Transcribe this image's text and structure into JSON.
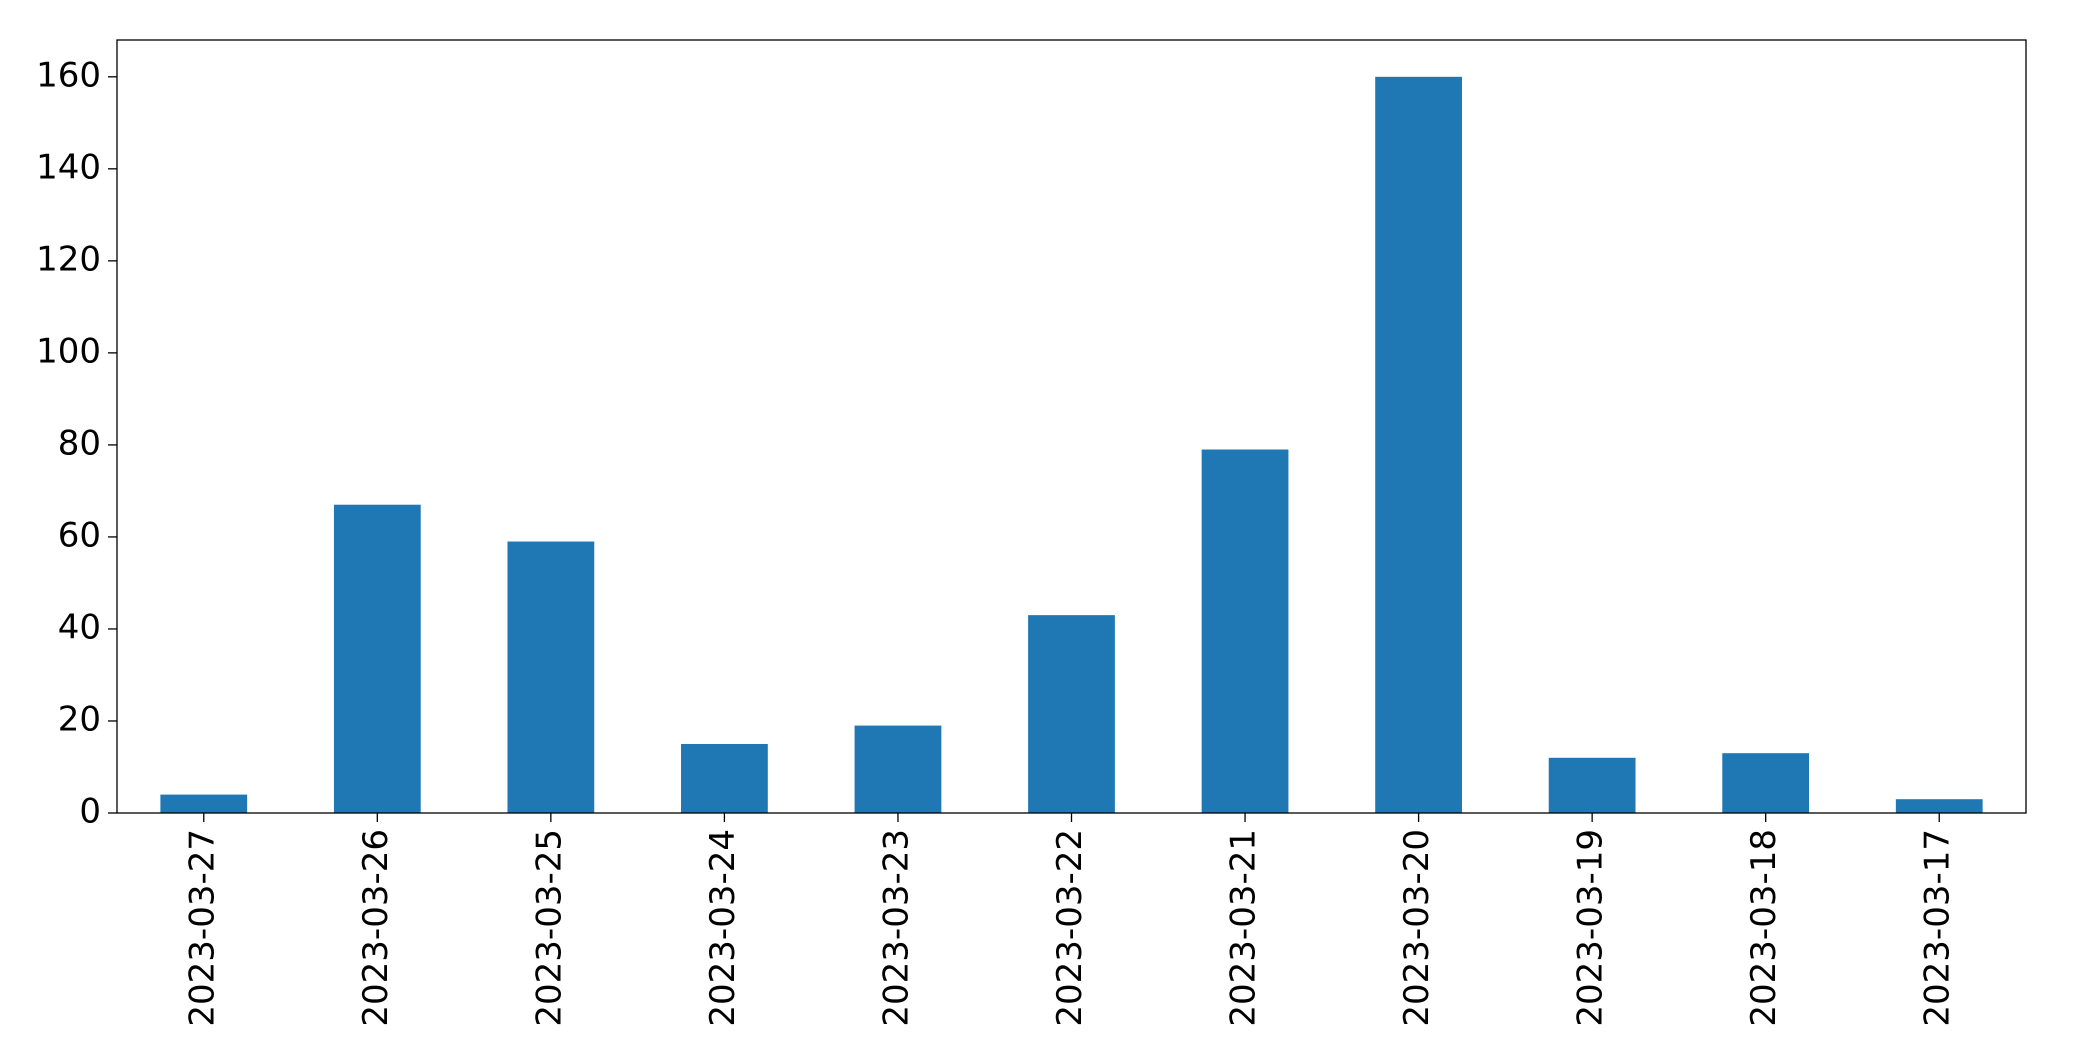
{
  "chart_data": {
    "type": "bar",
    "categories": [
      "2023-03-27",
      "2023-03-26",
      "2023-03-25",
      "2023-03-24",
      "2023-03-23",
      "2023-03-22",
      "2023-03-21",
      "2023-03-20",
      "2023-03-19",
      "2023-03-18",
      "2023-03-17"
    ],
    "values": [
      4,
      67,
      59,
      15,
      19,
      43,
      79,
      160,
      12,
      13,
      3
    ],
    "color": "#1f77b4",
    "ylim": [
      0,
      168
    ],
    "yticks": [
      0,
      20,
      40,
      60,
      80,
      100,
      120,
      140,
      160
    ],
    "grid": false
  }
}
